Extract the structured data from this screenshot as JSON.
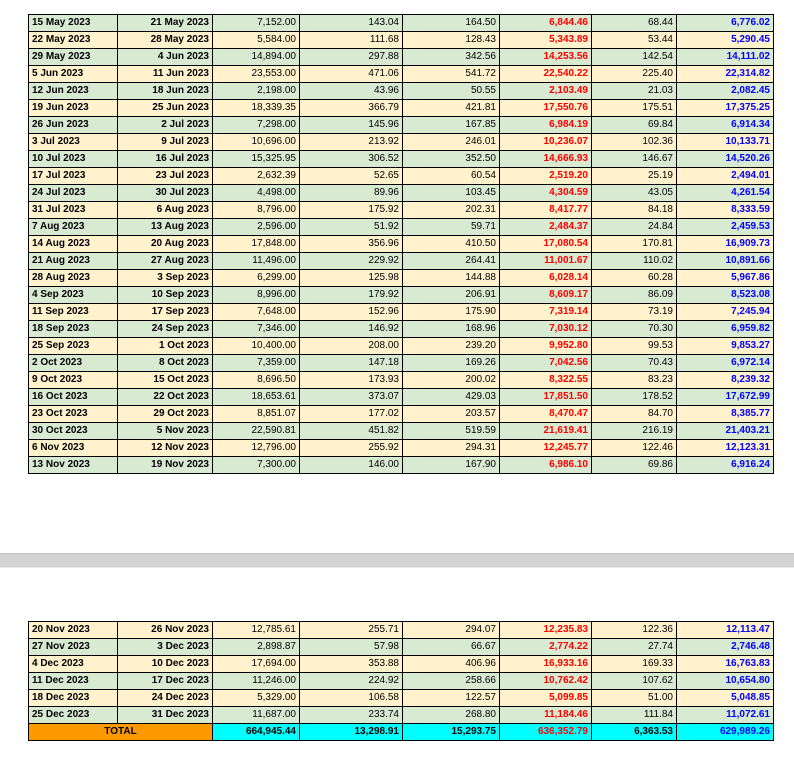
{
  "page1": {
    "rows": [
      [
        "15 May 2023",
        "21 May 2023",
        "7,152.00",
        "143.04",
        "164.50",
        "6,844.46",
        "68.44",
        "6,776.02"
      ],
      [
        "22 May 2023",
        "28 May 2023",
        "5,584.00",
        "111.68",
        "128.43",
        "5,343.89",
        "53.44",
        "5,290.45"
      ],
      [
        "29 May 2023",
        "4 Jun 2023",
        "14,894.00",
        "297.88",
        "342.56",
        "14,253.56",
        "142.54",
        "14,111.02"
      ],
      [
        "5 Jun 2023",
        "11 Jun 2023",
        "23,553.00",
        "471.06",
        "541.72",
        "22,540.22",
        "225.40",
        "22,314.82"
      ],
      [
        "12 Jun 2023",
        "18 Jun 2023",
        "2,198.00",
        "43.96",
        "50.55",
        "2,103.49",
        "21.03",
        "2,082.45"
      ],
      [
        "19 Jun 2023",
        "25 Jun 2023",
        "18,339.35",
        "366.79",
        "421.81",
        "17,550.76",
        "175.51",
        "17,375.25"
      ],
      [
        "26 Jun 2023",
        "2 Jul 2023",
        "7,298.00",
        "145.96",
        "167.85",
        "6,984.19",
        "69.84",
        "6,914.34"
      ],
      [
        "3 Jul 2023",
        "9 Jul 2023",
        "10,696.00",
        "213.92",
        "246.01",
        "10,236.07",
        "102.36",
        "10,133.71"
      ],
      [
        "10 Jul 2023",
        "16 Jul 2023",
        "15,325.95",
        "306.52",
        "352.50",
        "14,666.93",
        "146.67",
        "14,520.26"
      ],
      [
        "17 Jul 2023",
        "23 Jul 2023",
        "2,632.39",
        "52.65",
        "60.54",
        "2,519.20",
        "25.19",
        "2,494.01"
      ],
      [
        "24 Jul 2023",
        "30 Jul 2023",
        "4,498.00",
        "89.96",
        "103.45",
        "4,304.59",
        "43.05",
        "4,261.54"
      ],
      [
        "31 Jul 2023",
        "6 Aug 2023",
        "8,796.00",
        "175.92",
        "202.31",
        "8,417.77",
        "84.18",
        "8,333.59"
      ],
      [
        "7 Aug 2023",
        "13 Aug 2023",
        "2,596.00",
        "51.92",
        "59.71",
        "2,484.37",
        "24.84",
        "2,459.53"
      ],
      [
        "14 Aug 2023",
        "20 Aug 2023",
        "17,848.00",
        "356.96",
        "410.50",
        "17,080.54",
        "170.81",
        "16,909.73"
      ],
      [
        "21 Aug 2023",
        "27 Aug 2023",
        "11,496.00",
        "229.92",
        "264.41",
        "11,001.67",
        "110.02",
        "10,891.66"
      ],
      [
        "28 Aug 2023",
        "3 Sep 2023",
        "6,299.00",
        "125.98",
        "144.88",
        "6,028.14",
        "60.28",
        "5,967.86"
      ],
      [
        "4 Sep 2023",
        "10 Sep 2023",
        "8,996.00",
        "179.92",
        "206.91",
        "8,609.17",
        "86.09",
        "8,523.08"
      ],
      [
        "11 Sep 2023",
        "17 Sep 2023",
        "7,648.00",
        "152.96",
        "175.90",
        "7,319.14",
        "73.19",
        "7,245.94"
      ],
      [
        "18 Sep 2023",
        "24 Sep 2023",
        "7,346.00",
        "146.92",
        "168.96",
        "7,030.12",
        "70.30",
        "6,959.82"
      ],
      [
        "25 Sep 2023",
        "1 Oct 2023",
        "10,400.00",
        "208.00",
        "239.20",
        "9,952.80",
        "99.53",
        "9,853.27"
      ],
      [
        "2 Oct 2023",
        "8 Oct 2023",
        "7,359.00",
        "147.18",
        "169.26",
        "7,042.56",
        "70.43",
        "6,972.14"
      ],
      [
        "9 Oct 2023",
        "15 Oct 2023",
        "8,696.50",
        "173.93",
        "200.02",
        "8,322.55",
        "83.23",
        "8,239.32"
      ],
      [
        "16 Oct 2023",
        "22 Oct 2023",
        "18,653.61",
        "373.07",
        "429.03",
        "17,851.50",
        "178.52",
        "17,672.99"
      ],
      [
        "23 Oct 2023",
        "29 Oct 2023",
        "8,851.07",
        "177.02",
        "203.57",
        "8,470.47",
        "84.70",
        "8,385.77"
      ],
      [
        "30 Oct 2023",
        "5 Nov 2023",
        "22,590.81",
        "451.82",
        "519.59",
        "21,619.41",
        "216.19",
        "21,403.21"
      ],
      [
        "6 Nov 2023",
        "12 Nov 2023",
        "12,796.00",
        "255.92",
        "294.31",
        "12,245.77",
        "122.46",
        "12,123.31"
      ],
      [
        "13 Nov 2023",
        "19 Nov 2023",
        "7,300.00",
        "146.00",
        "167.90",
        "6,986.10",
        "69.86",
        "6,916.24"
      ]
    ]
  },
  "page2": {
    "rows": [
      [
        "20 Nov 2023",
        "26 Nov 2023",
        "12,785.61",
        "255.71",
        "294.07",
        "12,235.83",
        "122.36",
        "12,113.47"
      ],
      [
        "27 Nov 2023",
        "3 Dec 2023",
        "2,898.87",
        "57.98",
        "66.67",
        "2,774.22",
        "27.74",
        "2,746.48"
      ],
      [
        "4 Dec 2023",
        "10 Dec 2023",
        "17,694.00",
        "353.88",
        "406.96",
        "16,933.16",
        "169.33",
        "16,763.83"
      ],
      [
        "11 Dec 2023",
        "17 Dec 2023",
        "11,246.00",
        "224.92",
        "258.66",
        "10,762.42",
        "107.62",
        "10,654.80"
      ],
      [
        "18 Dec 2023",
        "24 Dec 2023",
        "5,329.00",
        "106.58",
        "122.57",
        "5,099.85",
        "51.00",
        "5,048.85"
      ],
      [
        "25 Dec 2023",
        "31 Dec 2023",
        "11,687.00",
        "233.74",
        "268.80",
        "11,184.46",
        "111.84",
        "11,072.61"
      ]
    ],
    "total": {
      "label": "TOTAL",
      "values": [
        "664,945.44",
        "13,298.91",
        "15,293.75",
        "636,352.79",
        "6,363.53",
        "629,989.26"
      ]
    }
  },
  "colors": {
    "row_green": "#d9ead3",
    "row_yellow": "#fff2cc",
    "red_values": "#ff0000",
    "blue_values": "#0000ff",
    "total_label_bg": "#ff9900",
    "total_values_bg": "#00ffff"
  }
}
